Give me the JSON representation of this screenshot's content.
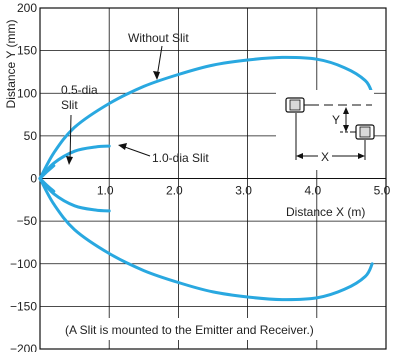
{
  "chart_data": {
    "type": "line",
    "xlabel": "Distance X (m)",
    "ylabel": "Distance Y (mm)",
    "xlim": [
      0,
      5
    ],
    "ylim": [
      -200,
      200
    ],
    "xticks": [
      1.0,
      2.0,
      3.0,
      4.0,
      5.0
    ],
    "xtick_labels": [
      "1.0",
      "2.0",
      "3.0",
      "4.0",
      "5.0"
    ],
    "yticks": [
      -200,
      -150,
      -100,
      -50,
      0,
      50,
      100,
      150,
      200
    ],
    "ytick_labels": [
      "−200",
      "−150",
      "−100",
      "−50",
      "0",
      "50",
      "100",
      "150",
      "200"
    ],
    "grid": true,
    "line_color": "#29a8e0",
    "series": [
      {
        "name": "Without Slit",
        "points": [
          [
            0.0,
            0
          ],
          [
            0.2,
            30
          ],
          [
            0.5,
            60
          ],
          [
            1.0,
            88
          ],
          [
            1.5,
            108
          ],
          [
            2.0,
            122
          ],
          [
            2.5,
            133
          ],
          [
            3.0,
            139
          ],
          [
            3.5,
            142
          ],
          [
            4.0,
            140
          ],
          [
            4.4,
            130
          ],
          [
            4.7,
            115
          ],
          [
            4.8,
            100
          ]
        ],
        "mirrored": true,
        "tail": [
          [
            4.75,
            118
          ],
          [
            4.8,
            100
          ]
        ]
      },
      {
        "name": "0.5-dia Slit",
        "points": [
          [
            0.0,
            0
          ],
          [
            0.1,
            8
          ],
          [
            0.2,
            15
          ]
        ],
        "mirrored": true
      },
      {
        "name": "1.0-dia Slit",
        "points": [
          [
            0.0,
            0
          ],
          [
            0.2,
            18
          ],
          [
            0.5,
            32
          ],
          [
            0.8,
            37
          ],
          [
            1.0,
            38
          ]
        ],
        "mirrored": true
      }
    ],
    "annotations": {
      "without_slit": "Without Slit",
      "slit_05_line1": "0.5-dia",
      "slit_05_line2": "Slit",
      "slit_10": "1.0-dia Slit",
      "note": "(A Slit is mounted to the Emitter and Receiver.)",
      "inset_x": "X",
      "inset_y": "Y"
    }
  }
}
